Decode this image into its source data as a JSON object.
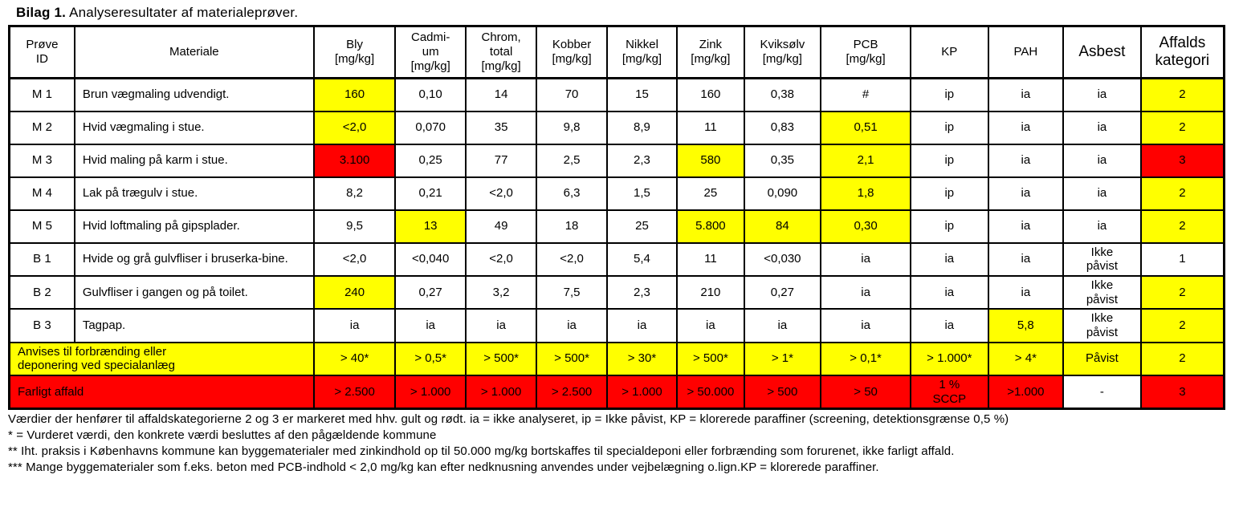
{
  "title": {
    "bold": "Bilag 1.",
    "rest": " Analyseresultater af materialeprøver."
  },
  "table": {
    "headers": [
      "Prøve\nID",
      "Materiale",
      "Bly\n[mg/kg]",
      "Cadmi-\num\n[mg/kg]",
      "Chrom,\ntotal\n[mg/kg]",
      "Kobber\n[mg/kg]",
      "Nikkel\n[mg/kg]",
      "Zink\n[mg/kg]",
      "Kviksølv\n[mg/kg]",
      "PCB\n[mg/kg]",
      "KP",
      "PAH",
      "Asbest",
      "Affalds\nkategori"
    ],
    "rows": [
      {
        "id": "M 1",
        "material": "Brun vægmaling udvendigt.",
        "values": [
          {
            "v": "160",
            "bg": "y"
          },
          {
            "v": "0,10"
          },
          {
            "v": "14"
          },
          {
            "v": "70"
          },
          {
            "v": "15"
          },
          {
            "v": "160"
          },
          {
            "v": "0,38"
          },
          {
            "v": "#"
          },
          {
            "v": "ip"
          },
          {
            "v": "ia"
          },
          {
            "v": "ia"
          },
          {
            "v": "2",
            "bg": "y"
          }
        ]
      },
      {
        "id": "M 2",
        "material": "Hvid vægmaling  i stue.",
        "values": [
          {
            "v": "<2,0",
            "bg": "y"
          },
          {
            "v": "0,070"
          },
          {
            "v": "35"
          },
          {
            "v": "9,8"
          },
          {
            "v": "8,9"
          },
          {
            "v": "11"
          },
          {
            "v": "0,83"
          },
          {
            "v": "0,51",
            "bg": "y"
          },
          {
            "v": "ip"
          },
          {
            "v": "ia"
          },
          {
            "v": "ia"
          },
          {
            "v": "2",
            "bg": "y"
          }
        ]
      },
      {
        "id": "M 3",
        "material": "Hvid maling på karm i stue.",
        "values": [
          {
            "v": "3.100",
            "bg": "r"
          },
          {
            "v": "0,25"
          },
          {
            "v": "77"
          },
          {
            "v": "2,5"
          },
          {
            "v": "2,3"
          },
          {
            "v": "580",
            "bg": "y"
          },
          {
            "v": "0,35"
          },
          {
            "v": "2,1",
            "bg": "y"
          },
          {
            "v": "ip"
          },
          {
            "v": "ia"
          },
          {
            "v": "ia"
          },
          {
            "v": "3",
            "bg": "r"
          }
        ]
      },
      {
        "id": "M 4",
        "material": "Lak på trægulv i stue.",
        "values": [
          {
            "v": "8,2"
          },
          {
            "v": "0,21"
          },
          {
            "v": "<2,0"
          },
          {
            "v": "6,3"
          },
          {
            "v": "1,5"
          },
          {
            "v": "25"
          },
          {
            "v": "0,090"
          },
          {
            "v": "1,8",
            "bg": "y"
          },
          {
            "v": "ip"
          },
          {
            "v": "ia"
          },
          {
            "v": "ia"
          },
          {
            "v": "2",
            "bg": "y"
          }
        ]
      },
      {
        "id": "M 5",
        "material": "Hvid loftmaling på gipsplader.",
        "values": [
          {
            "v": "9,5"
          },
          {
            "v": "13",
            "bg": "y"
          },
          {
            "v": "49"
          },
          {
            "v": "18"
          },
          {
            "v": "25"
          },
          {
            "v": "5.800",
            "bg": "y"
          },
          {
            "v": "84",
            "bg": "y"
          },
          {
            "v": "0,30",
            "bg": "y"
          },
          {
            "v": "ip"
          },
          {
            "v": "ia"
          },
          {
            "v": "ia"
          },
          {
            "v": "2",
            "bg": "y"
          }
        ]
      },
      {
        "id": "B 1",
        "material": "Hvide og grå gulvfliser i bruserka-bine.",
        "values": [
          {
            "v": "<2,0"
          },
          {
            "v": "<0,040"
          },
          {
            "v": "<2,0"
          },
          {
            "v": "<2,0"
          },
          {
            "v": "5,4"
          },
          {
            "v": "11"
          },
          {
            "v": "<0,030"
          },
          {
            "v": "ia"
          },
          {
            "v": "ia"
          },
          {
            "v": "ia"
          },
          {
            "v": "Ikke\npåvist"
          },
          {
            "v": "1"
          }
        ]
      },
      {
        "id": "B 2",
        "material": "Gulvfliser i gangen og på toilet.",
        "values": [
          {
            "v": "240",
            "bg": "y"
          },
          {
            "v": "0,27"
          },
          {
            "v": "3,2"
          },
          {
            "v": "7,5"
          },
          {
            "v": "2,3"
          },
          {
            "v": "210"
          },
          {
            "v": "0,27"
          },
          {
            "v": "ia"
          },
          {
            "v": "ia"
          },
          {
            "v": "ia"
          },
          {
            "v": "Ikke\npåvist"
          },
          {
            "v": "2",
            "bg": "y"
          }
        ]
      },
      {
        "id": "B 3",
        "material": "Tagpap.",
        "values": [
          {
            "v": "ia"
          },
          {
            "v": "ia"
          },
          {
            "v": "ia"
          },
          {
            "v": "ia"
          },
          {
            "v": "ia"
          },
          {
            "v": "ia"
          },
          {
            "v": "ia"
          },
          {
            "v": "ia"
          },
          {
            "v": "ia"
          },
          {
            "v": "5,8",
            "bg": "y"
          },
          {
            "v": "Ikke\npåvist"
          },
          {
            "v": "2",
            "bg": "y"
          }
        ]
      }
    ],
    "threshold_rows": [
      {
        "label": "Anvises til forbrænding eller\ndeponering ved specialanlæg",
        "bg": "y",
        "values": [
          {
            "v": "> 40*",
            "bg": "y"
          },
          {
            "v": "> 0,5*",
            "bg": "y"
          },
          {
            "v": "> 500*",
            "bg": "y"
          },
          {
            "v": "> 500*",
            "bg": "y"
          },
          {
            "v": "> 30*",
            "bg": "y"
          },
          {
            "v": "> 500*",
            "bg": "y"
          },
          {
            "v": "> 1*",
            "bg": "y"
          },
          {
            "v": "> 0,1*",
            "bg": "y"
          },
          {
            "v": "> 1.000*",
            "bg": "y"
          },
          {
            "v": "> 4*",
            "bg": "y"
          },
          {
            "v": "Påvist",
            "bg": "y"
          },
          {
            "v": "2",
            "bg": "y"
          }
        ]
      },
      {
        "label": "Farligt affald",
        "bg": "r",
        "values": [
          {
            "v": "> 2.500",
            "bg": "r"
          },
          {
            "v": "> 1.000",
            "bg": "r"
          },
          {
            "v": "> 1.000",
            "bg": "r"
          },
          {
            "v": "> 2.500",
            "bg": "r"
          },
          {
            "v": "> 1.000",
            "bg": "r"
          },
          {
            "v": "> 50.000",
            "bg": "r"
          },
          {
            "v": "> 500",
            "bg": "r"
          },
          {
            "v": "> 50",
            "bg": "r"
          },
          {
            "v": "1 %\nSCCP",
            "bg": "r"
          },
          {
            "v": ">1.000",
            "bg": "r"
          },
          {
            "v": "-"
          },
          {
            "v": "3",
            "bg": "r"
          }
        ]
      }
    ]
  },
  "footnotes": [
    "Værdier der henfører til affaldskategorierne 2 og 3 er markeret med hhv. gult og rødt. ia = ikke analyseret, ip = Ikke påvist, KP = klorerede paraffiner (screening, detektionsgrænse 0,5 %)",
    "* = Vurderet værdi, den konkrete værdi besluttes af den pågældende kommune",
    "** Iht. praksis i Københavns kommune kan byggematerialer med zinkindhold op til 50.000 mg/kg bortskaffes til specialdeponi eller forbrænding som forurenet, ikke farligt affald.",
    "*** Mange byggematerialer som f.eks. beton med PCB-indhold < 2,0 mg/kg kan efter nedknusning anvendes under vejbelægning o.lign.KP = klorerede paraffiner."
  ],
  "colors": {
    "category2_highlight": "#FFFF00",
    "category3_highlight": "#FF0000",
    "border": "#000000"
  }
}
